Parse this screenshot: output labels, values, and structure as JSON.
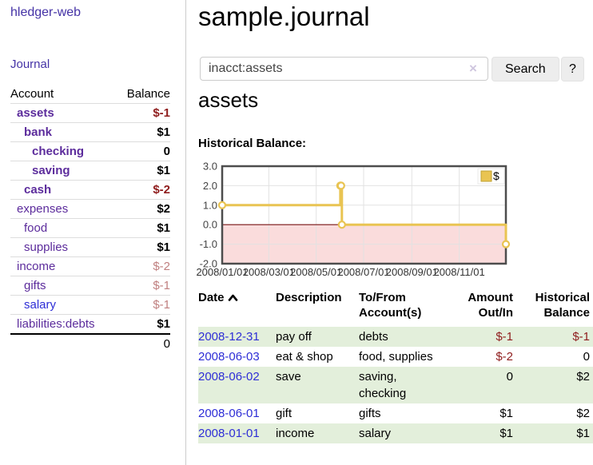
{
  "colors": {
    "purple_nav": "#4533a6",
    "purple_account": "#5c2c9c",
    "blue_link": "#2e2ed6",
    "negative_strong": "#8f1d1d",
    "negative_soft": "#c08080",
    "row_green": "#e3efdb",
    "chart_gold": "#e9c452",
    "chart_negative_pink": "#fadcdc",
    "chart_zero_line": "#7c1414"
  },
  "sidebar": {
    "app_title": "hledger-web",
    "journal_link": "Journal",
    "accounts_table": {
      "account_header": "Account",
      "balance_header": "Balance",
      "rows": [
        {
          "name": "assets",
          "balance": "$-1",
          "level": 1,
          "bold": true,
          "balance_style": "neg-strong"
        },
        {
          "name": "bank",
          "balance": "$1",
          "level": 2,
          "bold": true,
          "balance_style": "pos"
        },
        {
          "name": "checking",
          "balance": "0",
          "level": 3,
          "bold": true,
          "balance_style": "pos"
        },
        {
          "name": "saving",
          "balance": "$1",
          "level": 3,
          "bold": true,
          "balance_style": "pos"
        },
        {
          "name": "cash",
          "balance": "$-2",
          "level": 2,
          "bold": true,
          "balance_style": "neg-strong"
        },
        {
          "name": "expenses",
          "balance": "$2",
          "level": 1,
          "bold": false,
          "balance_style": "pos"
        },
        {
          "name": "food",
          "balance": "$1",
          "level": 2,
          "bold": false,
          "balance_style": "pos"
        },
        {
          "name": "supplies",
          "balance": "$1",
          "level": 2,
          "bold": false,
          "balance_style": "pos"
        },
        {
          "name": "income",
          "balance": "$-2",
          "level": 1,
          "bold": false,
          "balance_style": "neg-soft"
        },
        {
          "name": "gifts",
          "balance": "$-1",
          "level": 2,
          "bold": false,
          "balance_style": "neg-soft"
        },
        {
          "name": "salary",
          "balance": "$-1",
          "level": 2,
          "bold": false,
          "balance_style": "neg-soft",
          "link_color": "blue"
        },
        {
          "name": "liabilities:debts",
          "balance": "$1",
          "level": 1,
          "bold": false,
          "balance_style": "pos"
        }
      ],
      "total": "0"
    }
  },
  "main": {
    "title": "sample.journal",
    "search": {
      "query": "inacct:assets",
      "clear_icon": "×",
      "search_button": "Search",
      "help_button": "?"
    },
    "account_heading": "assets",
    "chart_label": "Historical Balance:"
  },
  "chart_data": {
    "type": "line",
    "step": true,
    "title": "Historical Balance:",
    "series": [
      {
        "name": "$",
        "points": [
          [
            "2008/01/01",
            1
          ],
          [
            "2008/06/01",
            2
          ],
          [
            "2008/06/02",
            2
          ],
          [
            "2008/06/03",
            0
          ],
          [
            "2008/12/31",
            -1
          ]
        ]
      }
    ],
    "x_ticks": [
      "2008/01/01",
      "2008/03/01",
      "2008/05/01",
      "2008/07/01",
      "2008/09/01",
      "2008/11/01"
    ],
    "y_ticks": [
      "3.0",
      "2.0",
      "1.0",
      "0.0",
      "-1.0",
      "-2.0"
    ],
    "xlim": [
      "2008/01/01",
      "2008/12/31"
    ],
    "ylim": [
      -2,
      3
    ],
    "grid": true,
    "legend_position": "top-right",
    "negative_region_shaded": true
  },
  "table": {
    "headers": {
      "date": "Date",
      "description": "Description",
      "tofrom": "To/From Account(s)",
      "amount": "Amount Out/In",
      "historical": "Historical Balance"
    },
    "rows": [
      {
        "date": "2008-12-31",
        "description": "pay off",
        "accounts": "debts",
        "amount": "$-1",
        "balance": "$-1",
        "shade": true
      },
      {
        "date": "2008-06-03",
        "description": "eat & shop",
        "accounts": "food, supplies",
        "amount": "$-2",
        "balance": "0",
        "shade": false
      },
      {
        "date": "2008-06-02",
        "description": "save",
        "accounts": "saving, checking",
        "amount": "0",
        "balance": "$2",
        "shade": true
      },
      {
        "date": "2008-06-01",
        "description": "gift",
        "accounts": "gifts",
        "amount": "$1",
        "balance": "$2",
        "shade": false
      },
      {
        "date": "2008-01-01",
        "description": "income",
        "accounts": "salary",
        "amount": "$1",
        "balance": "$1",
        "shade": true
      }
    ]
  }
}
